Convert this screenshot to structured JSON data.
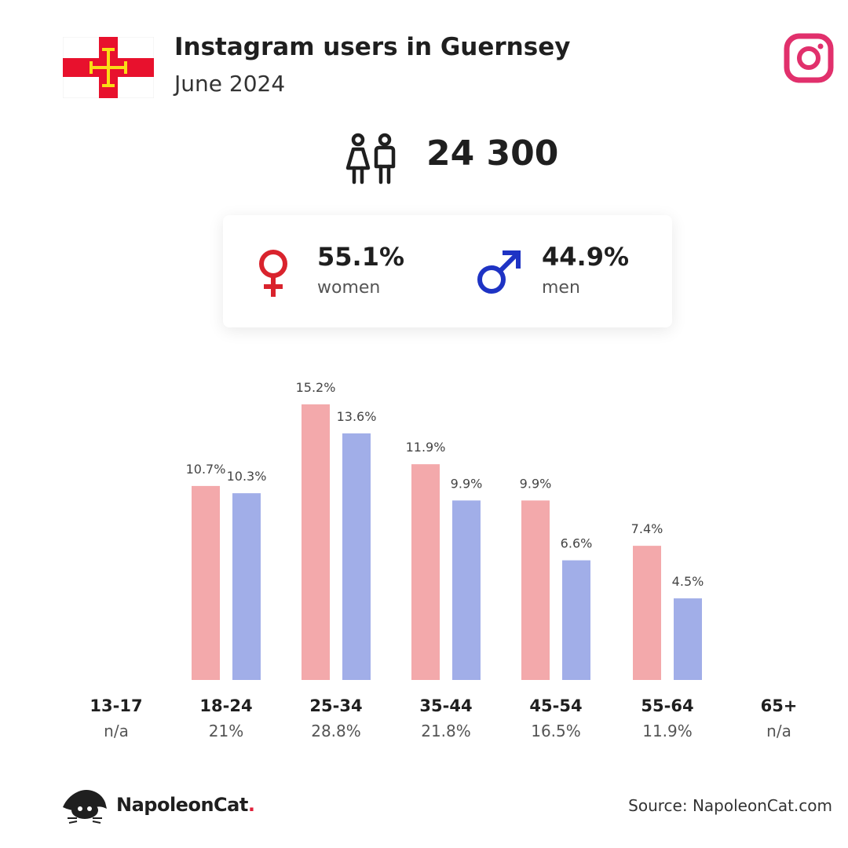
{
  "header": {
    "title": "Instagram users in Guernsey",
    "subtitle": "June 2024"
  },
  "total_users": "24 300",
  "gender": {
    "women_pct": "55.1%",
    "women_label": "women",
    "men_pct": "44.9%",
    "men_label": "men"
  },
  "colors": {
    "women_bar": "#f3a9ab",
    "men_bar": "#a1aee8",
    "women_icon": "#d9232d",
    "men_icon": "#1e33c4",
    "instagram": "#e1306c"
  },
  "chart_data": {
    "type": "bar",
    "categories": [
      "13-17",
      "18-24",
      "25-34",
      "35-44",
      "45-54",
      "55-64",
      "65+"
    ],
    "category_totals": [
      "n/a",
      "21%",
      "28.8%",
      "21.8%",
      "16.5%",
      "11.9%",
      "n/a"
    ],
    "series": [
      {
        "values": [
          null,
          10.7,
          15.2,
          11.9,
          9.9,
          7.4,
          null
        ],
        "labels": [
          "",
          "10.7%",
          "15.2%",
          "11.9%",
          "9.9%",
          "7.4%",
          ""
        ]
      },
      {
        "values": [
          null,
          10.3,
          13.6,
          9.9,
          6.6,
          4.5,
          null
        ],
        "labels": [
          "",
          "10.3%",
          "13.6%",
          "9.9%",
          "6.6%",
          "4.5%",
          ""
        ]
      }
    ],
    "ylim": [
      0,
      15.2
    ],
    "grid": false
  },
  "footer": {
    "brand": "NapoleonCat",
    "brand_dot": ".",
    "source": "Source: NapoleonCat.com"
  }
}
